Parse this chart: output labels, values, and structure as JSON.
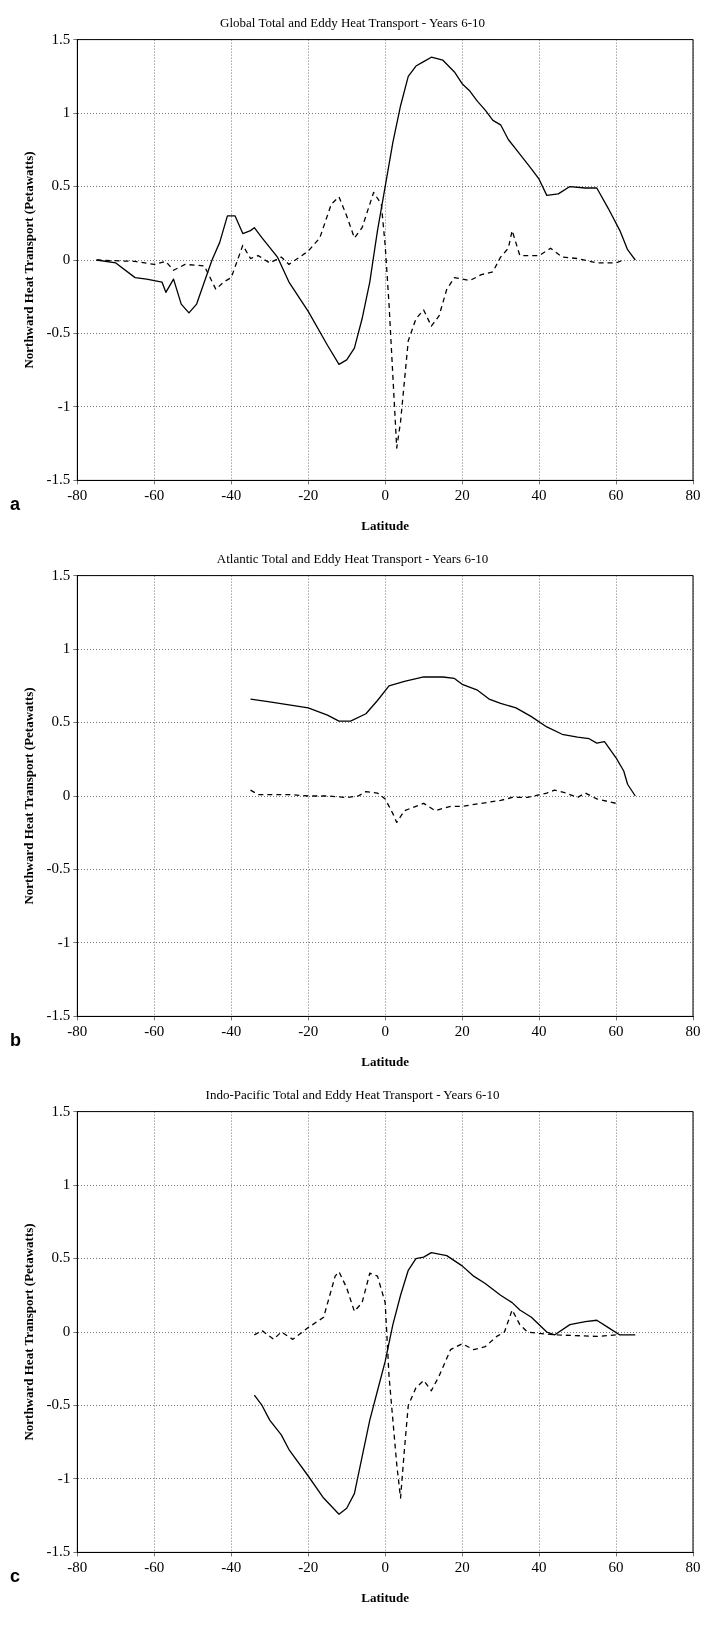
{
  "chart_data": [
    {
      "type": "line",
      "title": "Global Total and Eddy Heat Transport - Years 6-10",
      "xlabel": "Latitude",
      "ylabel": "Northward Heat Transport (Petawatts)",
      "annotations": [
        "a"
      ],
      "xlim": [
        -80,
        80
      ],
      "xticks": [
        -80,
        -60,
        -40,
        -20,
        0,
        20,
        40,
        60,
        80
      ],
      "ylim": [
        -1.5,
        1.5
      ],
      "yticks": [
        -1.5,
        -1,
        -0.5,
        0,
        0.5,
        1,
        1.5
      ],
      "grid": true,
      "series": [
        {
          "color": "#000000",
          "line_style": "solid",
          "x": [
            -75,
            -70,
            -65,
            -62,
            -58,
            -57,
            -55,
            -53,
            -51,
            -49,
            -47,
            -45,
            -43,
            -41,
            -39,
            -37,
            -35,
            -34,
            -32,
            -28,
            -25,
            -20,
            -15,
            -12,
            -10,
            -8,
            -6,
            -4,
            -2,
            0,
            2,
            4,
            6,
            8,
            10,
            12,
            15,
            18,
            20,
            22,
            24,
            26,
            28,
            30,
            32,
            35,
            38,
            40,
            42,
            45,
            48,
            52,
            55,
            58,
            61,
            63,
            65
          ],
          "values": [
            0,
            -0.02,
            -0.12,
            -0.13,
            -0.15,
            -0.22,
            -0.13,
            -0.3,
            -0.36,
            -0.3,
            -0.15,
            0,
            0.12,
            0.3,
            0.3,
            0.18,
            0.2,
            0.22,
            0.15,
            0.02,
            -0.15,
            -0.35,
            -0.58,
            -0.71,
            -0.68,
            -0.6,
            -0.4,
            -0.15,
            0.2,
            0.5,
            0.8,
            1.05,
            1.25,
            1.32,
            1.35,
            1.38,
            1.36,
            1.28,
            1.2,
            1.15,
            1.08,
            1.02,
            0.95,
            0.92,
            0.82,
            0.72,
            0.62,
            0.55,
            0.44,
            0.45,
            0.5,
            0.49,
            0.49,
            0.35,
            0.2,
            0.07,
            0
          ]
        },
        {
          "color": "#000000",
          "line_style": "dashed",
          "x": [
            -75,
            -65,
            -60,
            -57,
            -55,
            -52,
            -47,
            -44,
            -42,
            -40,
            -37,
            -35,
            -33,
            -30,
            -27,
            -25,
            -20,
            -17,
            -14,
            -12,
            -10,
            -8,
            -6,
            -3,
            -1,
            0,
            1,
            3,
            4,
            6,
            8,
            10,
            12,
            14,
            16,
            18,
            22,
            25,
            28,
            30,
            32,
            33,
            35,
            40,
            43,
            46,
            50,
            55,
            60,
            62
          ],
          "values": [
            0,
            -0.01,
            -0.03,
            -0.01,
            -0.07,
            -0.03,
            -0.04,
            -0.2,
            -0.15,
            -0.12,
            0.1,
            0.01,
            0.03,
            -0.02,
            0.02,
            -0.03,
            0.06,
            0.15,
            0.38,
            0.43,
            0.3,
            0.15,
            0.22,
            0.46,
            0.38,
            0.1,
            -0.3,
            -1.28,
            -1.1,
            -0.55,
            -0.4,
            -0.34,
            -0.45,
            -0.38,
            -0.2,
            -0.12,
            -0.14,
            -0.1,
            -0.08,
            0.02,
            0.08,
            0.2,
            0.03,
            0.03,
            0.08,
            0.02,
            0.01,
            -0.02,
            -0.02,
            0
          ]
        }
      ]
    },
    {
      "type": "line",
      "title": "Atlantic Total and Eddy Heat Transport - Years 6-10",
      "xlabel": "Latitude",
      "ylabel": "Northward Heat Transport (Petawatts)",
      "annotations": [
        "b"
      ],
      "xlim": [
        -80,
        80
      ],
      "xticks": [
        -80,
        -60,
        -40,
        -20,
        0,
        20,
        40,
        60,
        80
      ],
      "ylim": [
        -1.5,
        1.5
      ],
      "yticks": [
        -1.5,
        -1,
        -0.5,
        0,
        0.5,
        1,
        1.5
      ],
      "grid": true,
      "series": [
        {
          "color": "#000000",
          "line_style": "solid",
          "x": [
            -35,
            -30,
            -25,
            -20,
            -15,
            -12,
            -9,
            -5,
            -2,
            1,
            5,
            10,
            15,
            18,
            20,
            24,
            27,
            30,
            34,
            38,
            42,
            46,
            50,
            53,
            55,
            57,
            60,
            62,
            63,
            65
          ],
          "values": [
            0.66,
            0.64,
            0.62,
            0.6,
            0.55,
            0.51,
            0.51,
            0.56,
            0.65,
            0.75,
            0.78,
            0.81,
            0.81,
            0.8,
            0.76,
            0.72,
            0.66,
            0.63,
            0.6,
            0.54,
            0.47,
            0.42,
            0.4,
            0.39,
            0.36,
            0.37,
            0.26,
            0.17,
            0.08,
            0
          ]
        },
        {
          "color": "#000000",
          "line_style": "dashed",
          "x": [
            -35,
            -33,
            -30,
            -25,
            -20,
            -15,
            -10,
            -7,
            -5,
            -2,
            0,
            2,
            3,
            5,
            7,
            10,
            13,
            17,
            20,
            25,
            30,
            33,
            37,
            42,
            44,
            47,
            50,
            52,
            55,
            60
          ],
          "values": [
            0.04,
            0.01,
            0.01,
            0.01,
            0,
            0,
            -0.01,
            0,
            0.03,
            0.02,
            -0.02,
            -0.12,
            -0.18,
            -0.1,
            -0.08,
            -0.05,
            -0.1,
            -0.07,
            -0.07,
            -0.05,
            -0.03,
            -0.01,
            -0.01,
            0.02,
            0.04,
            0.02,
            -0.01,
            0.02,
            -0.02,
            -0.05
          ]
        }
      ]
    },
    {
      "type": "line",
      "title": "Indo-Pacific Total and Eddy Heat Transport - Years 6-10",
      "xlabel": "Latitude",
      "ylabel": "Northward Heat Transport (Petawatts)",
      "annotations": [
        "c"
      ],
      "xlim": [
        -80,
        80
      ],
      "xticks": [
        -80,
        -60,
        -40,
        -20,
        0,
        20,
        40,
        60,
        80
      ],
      "ylim": [
        -1.5,
        1.5
      ],
      "yticks": [
        -1.5,
        -1,
        -0.5,
        0,
        0.5,
        1,
        1.5
      ],
      "grid": true,
      "series": [
        {
          "color": "#000000",
          "line_style": "solid",
          "x": [
            -34,
            -32,
            -30,
            -27,
            -25,
            -20,
            -16,
            -12,
            -10,
            -8,
            -6,
            -4,
            -2,
            0,
            2,
            4,
            6,
            8,
            10,
            12,
            16,
            20,
            23,
            26,
            30,
            33,
            35,
            38,
            42,
            44,
            48,
            52,
            55,
            58,
            61,
            65
          ],
          "values": [
            -0.43,
            -0.5,
            -0.6,
            -0.7,
            -0.8,
            -0.98,
            -1.13,
            -1.24,
            -1.2,
            -1.1,
            -0.85,
            -0.6,
            -0.4,
            -0.2,
            0.05,
            0.25,
            0.42,
            0.5,
            0.51,
            0.54,
            0.52,
            0.45,
            0.38,
            0.33,
            0.25,
            0.2,
            0.15,
            0.1,
            0,
            -0.02,
            0.05,
            0.07,
            0.08,
            0.03,
            -0.02,
            -0.02
          ]
        },
        {
          "color": "#000000",
          "line_style": "dashed",
          "x": [
            -34,
            -32,
            -29,
            -27,
            -24,
            -20,
            -16,
            -13,
            -12,
            -10,
            -8,
            -6,
            -4,
            -2,
            0,
            1,
            3,
            4,
            5,
            6,
            8,
            10,
            12,
            14,
            17,
            20,
            23,
            26,
            29,
            31,
            33,
            35,
            37,
            40,
            45,
            55,
            60
          ],
          "values": [
            -0.02,
            0.01,
            -0.05,
            0,
            -0.05,
            0.03,
            0.1,
            0.38,
            0.41,
            0.3,
            0.14,
            0.2,
            0.4,
            0.38,
            0.2,
            -0.3,
            -0.9,
            -1.13,
            -0.8,
            -0.5,
            -0.38,
            -0.33,
            -0.4,
            -0.3,
            -0.12,
            -0.08,
            -0.12,
            -0.1,
            -0.03,
            0,
            0.15,
            0.05,
            0,
            -0.01,
            -0.02,
            -0.03,
            -0.02
          ]
        }
      ]
    }
  ]
}
